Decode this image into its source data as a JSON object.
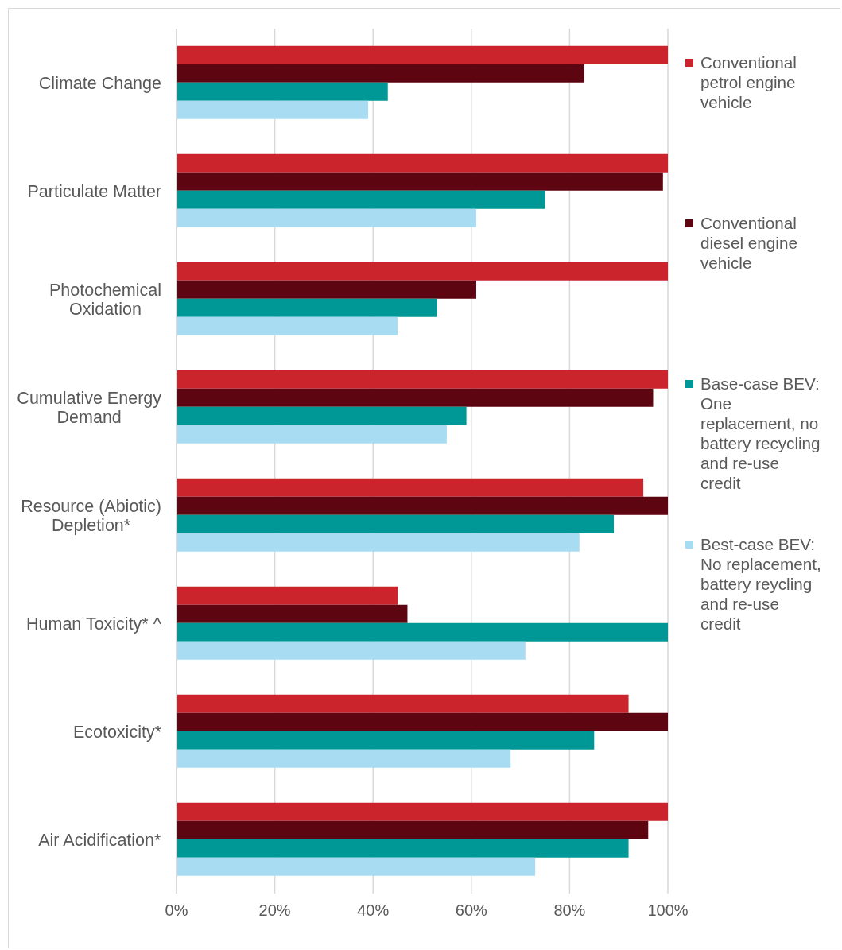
{
  "chart_data": {
    "type": "bar",
    "orientation": "horizontal",
    "categories": [
      "Climate Change",
      "Particulate Matter",
      "Photochemical Oxidation",
      "Cumulative Energy Demand",
      "Resource (Abiotic) Depletion*",
      "Human Toxicity* ^",
      "Ecotoxicity*",
      "Air Acidification*"
    ],
    "series": [
      {
        "name": "Conventional petrol engine vehicle",
        "color": "#cc242c",
        "values": [
          100,
          100,
          100,
          100,
          95,
          45,
          92,
          100
        ]
      },
      {
        "name": "Conventional diesel engine vehicle",
        "color": "#5e0512",
        "values": [
          83,
          99,
          61,
          97,
          100,
          47,
          100,
          96
        ]
      },
      {
        "name": "Base-case BEV: One replacement, no battery recycling and re-use credit",
        "color": "#009797",
        "values": [
          43,
          75,
          53,
          59,
          89,
          100,
          85,
          92
        ]
      },
      {
        "name": "Best-case BEV: No replacement, battery reycling and re-use credit",
        "color": "#a8dcf2",
        "values": [
          39,
          61,
          45,
          55,
          82,
          71,
          68,
          73
        ]
      }
    ],
    "xlim": [
      0,
      100
    ],
    "xticks": [
      {
        "value": 0,
        "label": "0%"
      },
      {
        "value": 20,
        "label": "20%"
      },
      {
        "value": 40,
        "label": "40%"
      },
      {
        "value": 60,
        "label": "60%"
      },
      {
        "value": 80,
        "label": "80%"
      },
      {
        "value": 100,
        "label": "100%"
      }
    ],
    "grid": "x",
    "legend": "right"
  }
}
